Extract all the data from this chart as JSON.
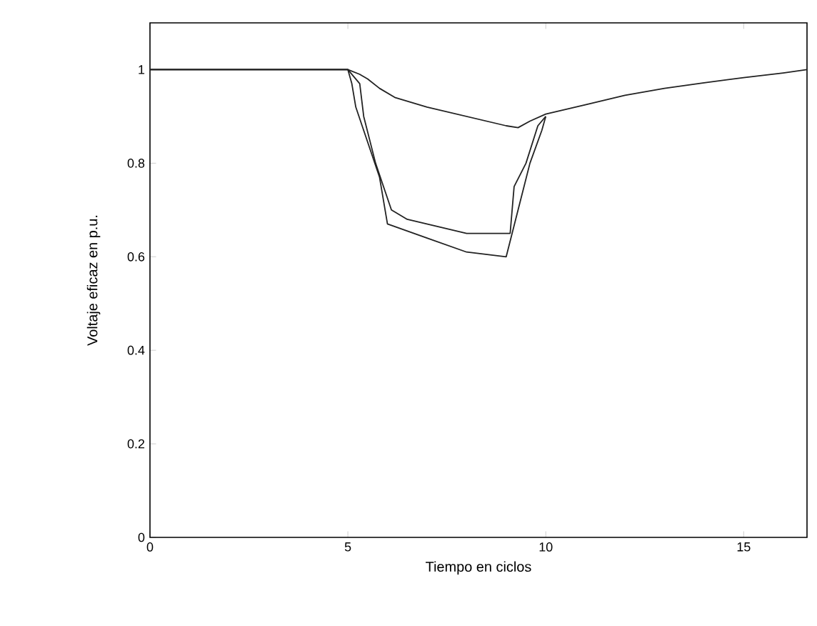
{
  "chart_data": {
    "type": "line",
    "xlabel": "Tiempo en ciclos",
    "ylabel": "Voltaje eficaz en p.u.",
    "xlim": [
      0,
      16.6
    ],
    "ylim": [
      0,
      1.1
    ],
    "xticks": [
      0,
      5,
      10,
      15
    ],
    "yticks": [
      0,
      0.2,
      0.4,
      0.6,
      0.8,
      1
    ],
    "grid": false,
    "marker": "none",
    "line_style": "solid",
    "series": [
      {
        "color": "#222222",
        "x": [
          0,
          5,
          5.3,
          5.5,
          5.8,
          6.2,
          7,
          8,
          9,
          9.3,
          9.6,
          10,
          11,
          12,
          13,
          14,
          15,
          16,
          16.6
        ],
        "values": [
          1,
          1,
          0.99,
          0.98,
          0.96,
          0.94,
          0.92,
          0.9,
          0.88,
          0.876,
          0.89,
          0.905,
          0.925,
          0.945,
          0.96,
          0.972,
          0.983,
          0.993,
          1
        ]
      },
      {
        "color": "#222222",
        "x": [
          0,
          5,
          5.3,
          5.4,
          5.7,
          6.1,
          6.5,
          7.5,
          8,
          9.1,
          9.2,
          9.5,
          9.8,
          10
        ],
        "values": [
          1,
          1,
          0.97,
          0.9,
          0.8,
          0.7,
          0.68,
          0.66,
          0.65,
          0.65,
          0.75,
          0.8,
          0.88,
          0.9
        ]
      },
      {
        "color": "#222222",
        "x": [
          0,
          5,
          5.1,
          5.2,
          5.8,
          6,
          7,
          8,
          9,
          9.3,
          9.6,
          9.9,
          10
        ],
        "values": [
          1,
          1,
          0.97,
          0.92,
          0.77,
          0.67,
          0.64,
          0.61,
          0.6,
          0.7,
          0.8,
          0.87,
          0.9
        ]
      }
    ]
  }
}
